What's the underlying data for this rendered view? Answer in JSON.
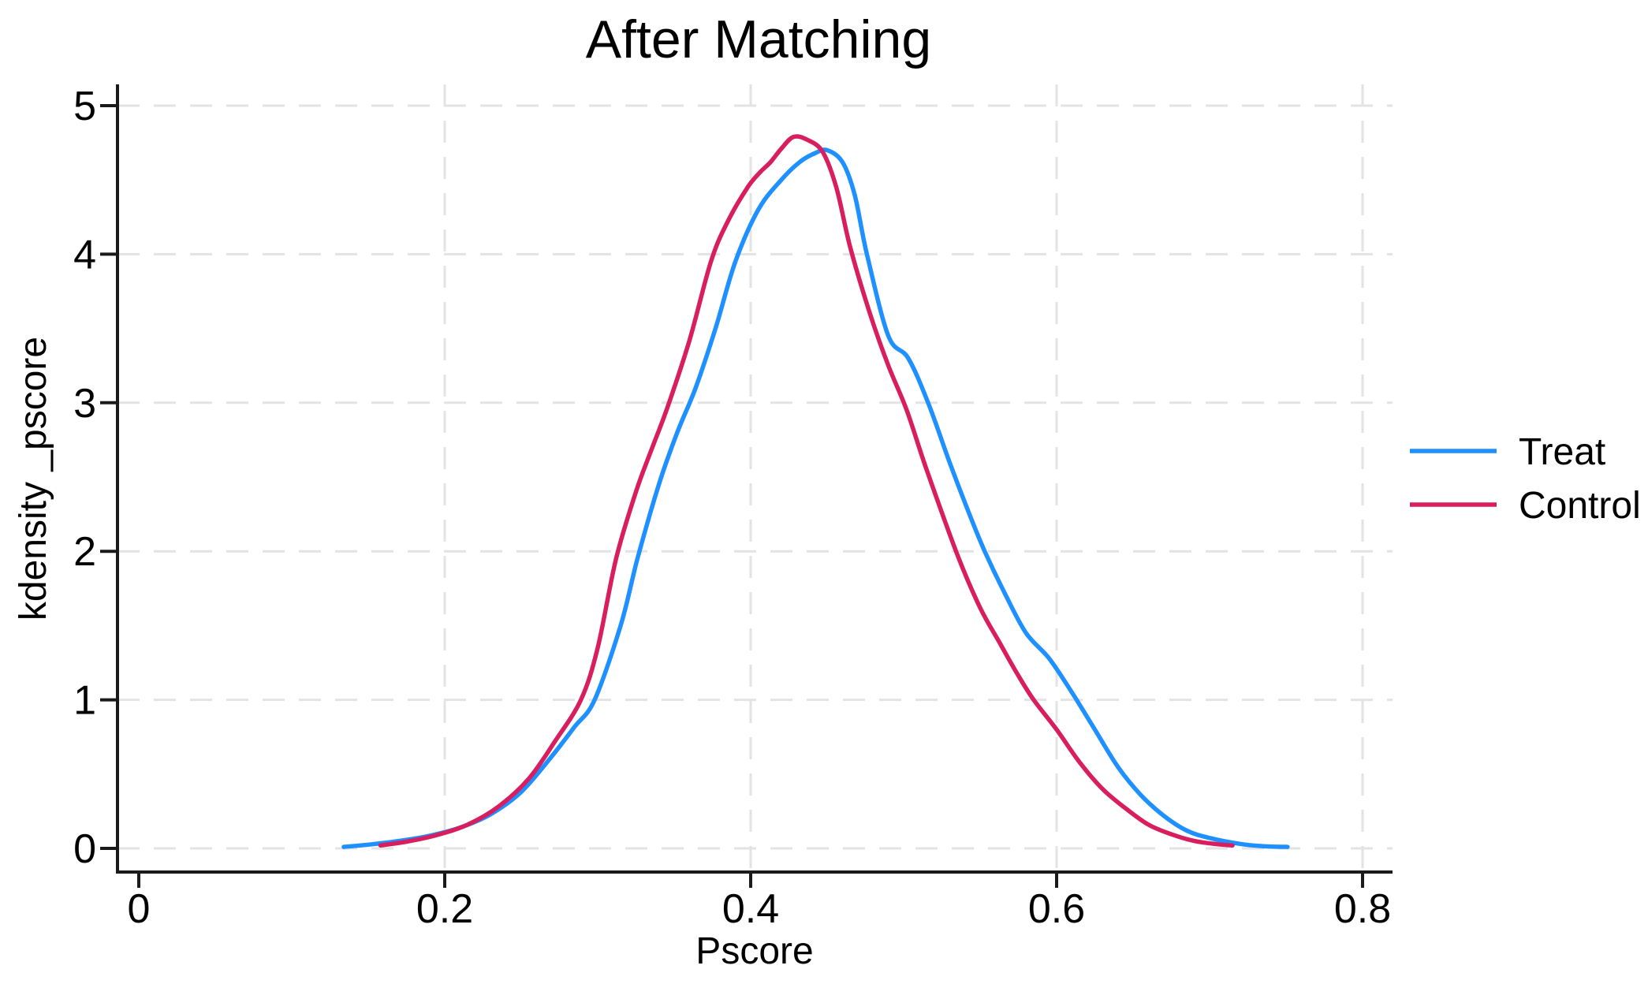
{
  "title": "After Matching",
  "axes": {
    "x": {
      "label": "Pscore",
      "ticks": [
        0,
        0.2,
        0.4,
        0.6,
        0.8
      ],
      "tick_labels": [
        "0",
        "0.2",
        "0.4",
        "0.6",
        "0.8"
      ],
      "range": [
        0,
        0.8
      ]
    },
    "y": {
      "label": "kdensity _pscore",
      "ticks": [
        0,
        1,
        2,
        3,
        4,
        5
      ],
      "tick_labels": [
        "0",
        "1",
        "2",
        "3",
        "4",
        "5"
      ],
      "range": [
        0,
        5
      ]
    }
  },
  "legend": {
    "position": "right-outside",
    "entries": [
      {
        "label": "Treat",
        "color": "#1e90ff"
      },
      {
        "label": "Control",
        "color": "#d81e5f"
      }
    ]
  },
  "colors": {
    "treat": "#1e90ff",
    "control": "#d81e5f",
    "grid": "#e3e3e3",
    "axis": "#1a1a1a",
    "text": "#000000",
    "background": "#ffffff"
  },
  "chart_data": {
    "type": "line",
    "subtype": "kernel-density",
    "title": "After Matching",
    "xlabel": "Pscore",
    "ylabel": "kdensity _pscore",
    "xlim": [
      0,
      0.8
    ],
    "ylim": [
      0,
      5
    ],
    "grid": "dashed, both directions",
    "legend_position": "right outside plot",
    "series": [
      {
        "name": "Treat",
        "color": "#1e90ff",
        "points": [
          [
            0.134,
            0.01
          ],
          [
            0.15,
            0.025
          ],
          [
            0.17,
            0.05
          ],
          [
            0.19,
            0.085
          ],
          [
            0.21,
            0.14
          ],
          [
            0.23,
            0.23
          ],
          [
            0.25,
            0.38
          ],
          [
            0.27,
            0.62
          ],
          [
            0.285,
            0.82
          ],
          [
            0.298,
            1.0
          ],
          [
            0.315,
            1.5
          ],
          [
            0.326,
            1.95
          ],
          [
            0.34,
            2.45
          ],
          [
            0.352,
            2.8
          ],
          [
            0.364,
            3.1
          ],
          [
            0.377,
            3.5
          ],
          [
            0.39,
            3.95
          ],
          [
            0.405,
            4.3
          ],
          [
            0.42,
            4.5
          ],
          [
            0.432,
            4.62
          ],
          [
            0.442,
            4.68
          ],
          [
            0.45,
            4.7
          ],
          [
            0.46,
            4.62
          ],
          [
            0.468,
            4.4
          ],
          [
            0.476,
            4.0
          ],
          [
            0.49,
            3.45
          ],
          [
            0.503,
            3.3
          ],
          [
            0.516,
            3.0
          ],
          [
            0.53,
            2.6
          ],
          [
            0.543,
            2.25
          ],
          [
            0.553,
            2.0
          ],
          [
            0.566,
            1.72
          ],
          [
            0.58,
            1.45
          ],
          [
            0.595,
            1.28
          ],
          [
            0.61,
            1.05
          ],
          [
            0.625,
            0.8
          ],
          [
            0.64,
            0.55
          ],
          [
            0.655,
            0.36
          ],
          [
            0.67,
            0.22
          ],
          [
            0.685,
            0.12
          ],
          [
            0.7,
            0.07
          ],
          [
            0.72,
            0.03
          ],
          [
            0.735,
            0.015
          ],
          [
            0.751,
            0.01
          ]
        ]
      },
      {
        "name": "Control",
        "color": "#d81e5f",
        "points": [
          [
            0.158,
            0.02
          ],
          [
            0.175,
            0.045
          ],
          [
            0.195,
            0.09
          ],
          [
            0.215,
            0.16
          ],
          [
            0.235,
            0.28
          ],
          [
            0.255,
            0.47
          ],
          [
            0.272,
            0.72
          ],
          [
            0.289,
            1.0
          ],
          [
            0.3,
            1.35
          ],
          [
            0.312,
            1.95
          ],
          [
            0.325,
            2.4
          ],
          [
            0.335,
            2.68
          ],
          [
            0.346,
            2.98
          ],
          [
            0.36,
            3.42
          ],
          [
            0.374,
            3.95
          ],
          [
            0.385,
            4.22
          ],
          [
            0.398,
            4.45
          ],
          [
            0.406,
            4.55
          ],
          [
            0.413,
            4.62
          ],
          [
            0.42,
            4.71
          ],
          [
            0.428,
            4.79
          ],
          [
            0.437,
            4.77
          ],
          [
            0.447,
            4.69
          ],
          [
            0.456,
            4.45
          ],
          [
            0.465,
            4.05
          ],
          [
            0.478,
            3.6
          ],
          [
            0.49,
            3.25
          ],
          [
            0.502,
            2.95
          ],
          [
            0.515,
            2.55
          ],
          [
            0.535,
            1.98
          ],
          [
            0.55,
            1.62
          ],
          [
            0.563,
            1.38
          ],
          [
            0.574,
            1.18
          ],
          [
            0.585,
            1.0
          ],
          [
            0.6,
            0.8
          ],
          [
            0.615,
            0.58
          ],
          [
            0.63,
            0.4
          ],
          [
            0.645,
            0.27
          ],
          [
            0.66,
            0.16
          ],
          [
            0.675,
            0.095
          ],
          [
            0.69,
            0.05
          ],
          [
            0.705,
            0.028
          ],
          [
            0.715,
            0.02
          ]
        ]
      }
    ]
  }
}
